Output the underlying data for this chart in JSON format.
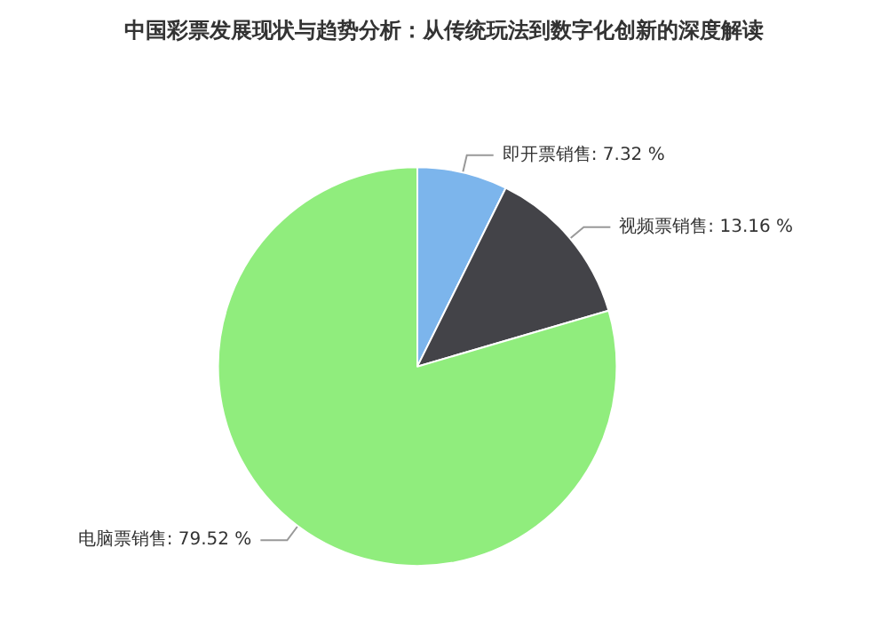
{
  "chart_data": {
    "type": "pie",
    "title": "中国彩票发展现状与趋势分析：从传统玩法到数字化创新的深度解读",
    "categories": [
      "即开票销售",
      "视频票销售",
      "电脑票销售"
    ],
    "values": [
      7.32,
      13.16,
      79.52
    ],
    "value_labels": [
      "7.32 %",
      "13.16 %",
      "79.52 %"
    ],
    "colors": [
      "#7cb5ec",
      "#434348",
      "#90ed7d"
    ],
    "legend": false
  }
}
